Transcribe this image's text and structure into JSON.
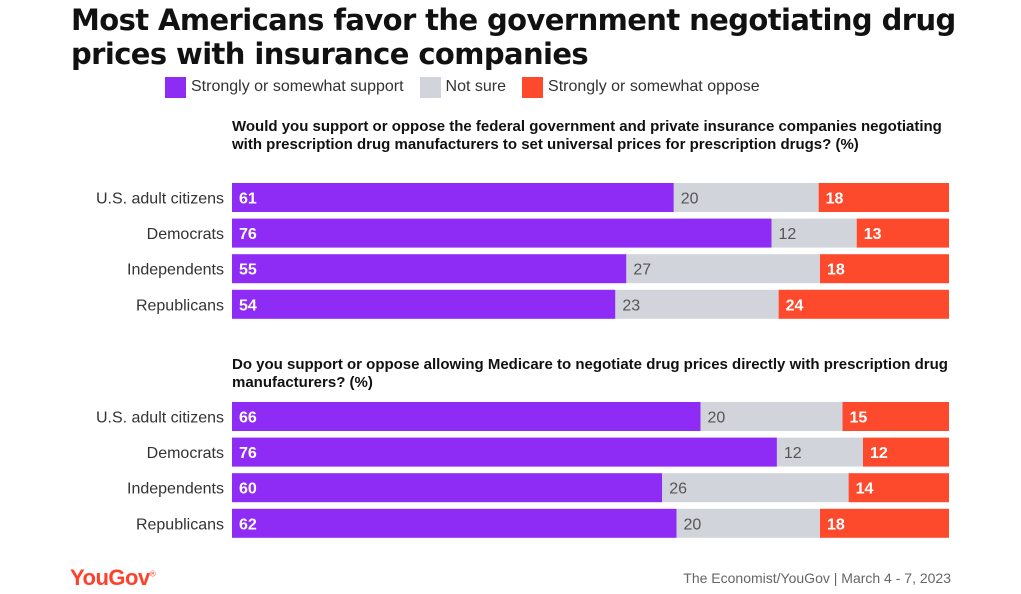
{
  "chart_data": {
    "type": "bar",
    "title": "Most Americans favor the government negotiating drug prices with insurance companies",
    "legend": [
      {
        "name": "Strongly or somewhat support",
        "color": "#8e2bf5"
      },
      {
        "name": "Not sure",
        "color": "#d1d4db"
      },
      {
        "name": "Strongly or somewhat oppose",
        "color": "#fd4a2d"
      }
    ],
    "legend_position": "top",
    "stacked": true,
    "panels": [
      {
        "question": "Would you support or oppose the federal government and private insurance companies negotiating with prescription drug manufacturers to set universal prices for prescription drugs? (%)",
        "categories": [
          "U.S. adult citizens",
          "Democrats",
          "Independents",
          "Republicans"
        ],
        "series": [
          {
            "name": "Strongly or somewhat support",
            "values": [
              61,
              76,
              55,
              54
            ]
          },
          {
            "name": "Not sure",
            "values": [
              20,
              12,
              27,
              23
            ]
          },
          {
            "name": "Strongly or somewhat oppose",
            "values": [
              18,
              13,
              18,
              24
            ]
          }
        ]
      },
      {
        "question": "Do you support or oppose allowing Medicare to negotiate drug prices directly with prescription drug manufacturers? (%)",
        "categories": [
          "U.S. adult citizens",
          "Democrats",
          "Independents",
          "Republicans"
        ],
        "series": [
          {
            "name": "Strongly or somewhat support",
            "values": [
              66,
              76,
              60,
              62
            ]
          },
          {
            "name": "Not sure",
            "values": [
              20,
              12,
              26,
              20
            ]
          },
          {
            "name": "Strongly or somewhat oppose",
            "values": [
              15,
              12,
              14,
              18
            ]
          }
        ]
      }
    ]
  },
  "footer": {
    "logo": "YouGov",
    "source": "The Economist/YouGov | March 4 - 7, 2023"
  }
}
